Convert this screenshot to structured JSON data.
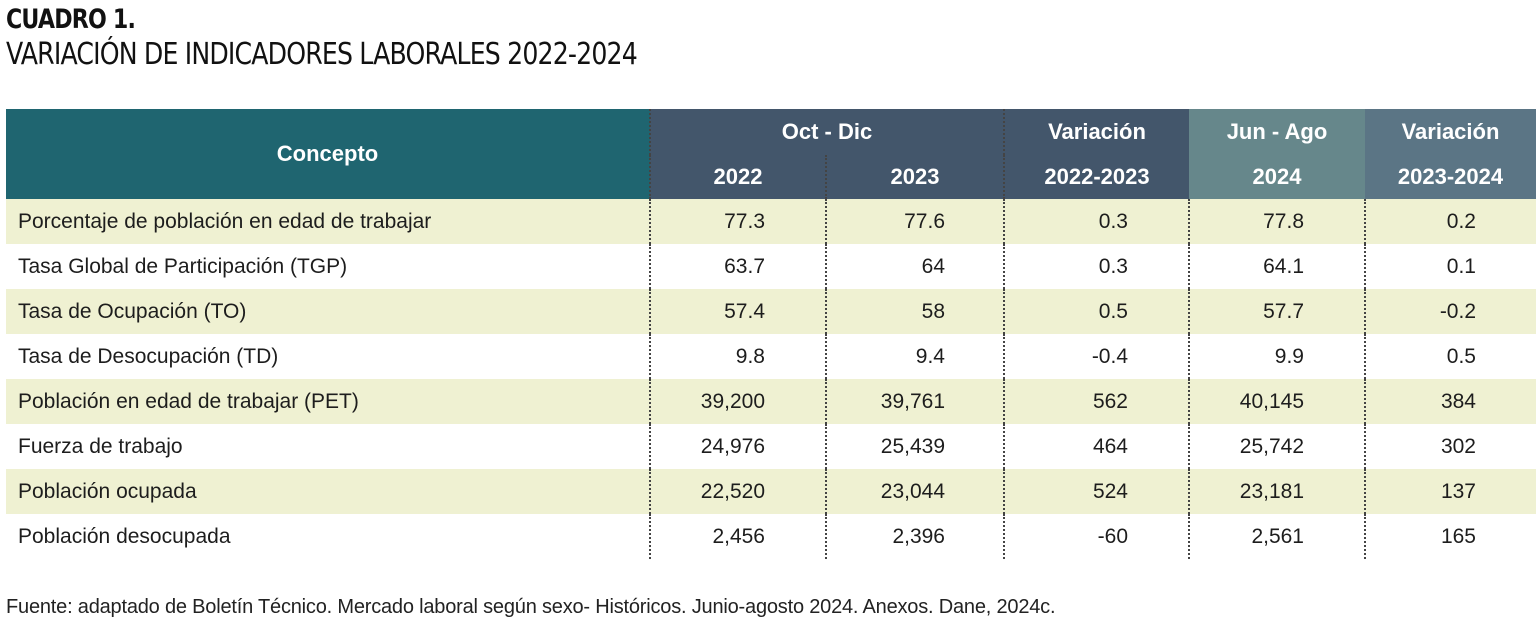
{
  "title": {
    "label": "CUADRO 1.",
    "main": "VARIACIÓN DE INDICADORES LABORALES 2022-2024"
  },
  "table": {
    "header": {
      "concepto": "Concepto",
      "oct_dic": "Oct - Dic",
      "variacion_1": "Variación",
      "jun_ago": "Jun - Ago",
      "variacion_2": "Variación",
      "y2022": "2022",
      "y2023": "2023",
      "var_2022_2023": "2022-2023",
      "y2024": "2024",
      "var_2023_2024": "2023-2024"
    },
    "rows": [
      {
        "concepto": "Porcentaje de población en edad de trabajar",
        "v2022": "77.3",
        "v2023": "77.6",
        "var1": "0.3",
        "v2024": "77.8",
        "var2": "0.2"
      },
      {
        "concepto": "Tasa Global de Participación (TGP)",
        "v2022": "63.7",
        "v2023": "64",
        "var1": "0.3",
        "v2024": "64.1",
        "var2": "0.1"
      },
      {
        "concepto": "Tasa de Ocupación (TO)",
        "v2022": "57.4",
        "v2023": "58",
        "var1": "0.5",
        "v2024": "57.7",
        "var2": "-0.2"
      },
      {
        "concepto": "Tasa de Desocupación (TD)",
        "v2022": "9.8",
        "v2023": "9.4",
        "var1": "-0.4",
        "v2024": "9.9",
        "var2": "0.5"
      },
      {
        "concepto": "Población en edad de trabajar (PET)",
        "v2022": "39,200",
        "v2023": "39,761",
        "var1": "562",
        "v2024": "40,145",
        "var2": "384"
      },
      {
        "concepto": "Fuerza de trabajo",
        "v2022": "24,976",
        "v2023": "25,439",
        "var1": "464",
        "v2024": "25,742",
        "var2": "302"
      },
      {
        "concepto": "Población ocupada",
        "v2022": "22,520",
        "v2023": "23,044",
        "var1": "524",
        "v2024": "23,181",
        "var2": "137"
      },
      {
        "concepto": "Población desocupada",
        "v2022": "2,456",
        "v2023": "2,396",
        "var1": "-60",
        "v2024": "2,561",
        "var2": "165"
      }
    ]
  },
  "footnote": "Fuente: adaptado de Boletín Técnico. Mercado laboral según sexo- Históricos. Junio-agosto 2024. Anexos. Dane, 2024c.",
  "colors": {
    "header_concepto": "#1f6570",
    "header_dark": "#43566b",
    "header_mid": "#66878b",
    "row_shade": "#eff1d2"
  }
}
